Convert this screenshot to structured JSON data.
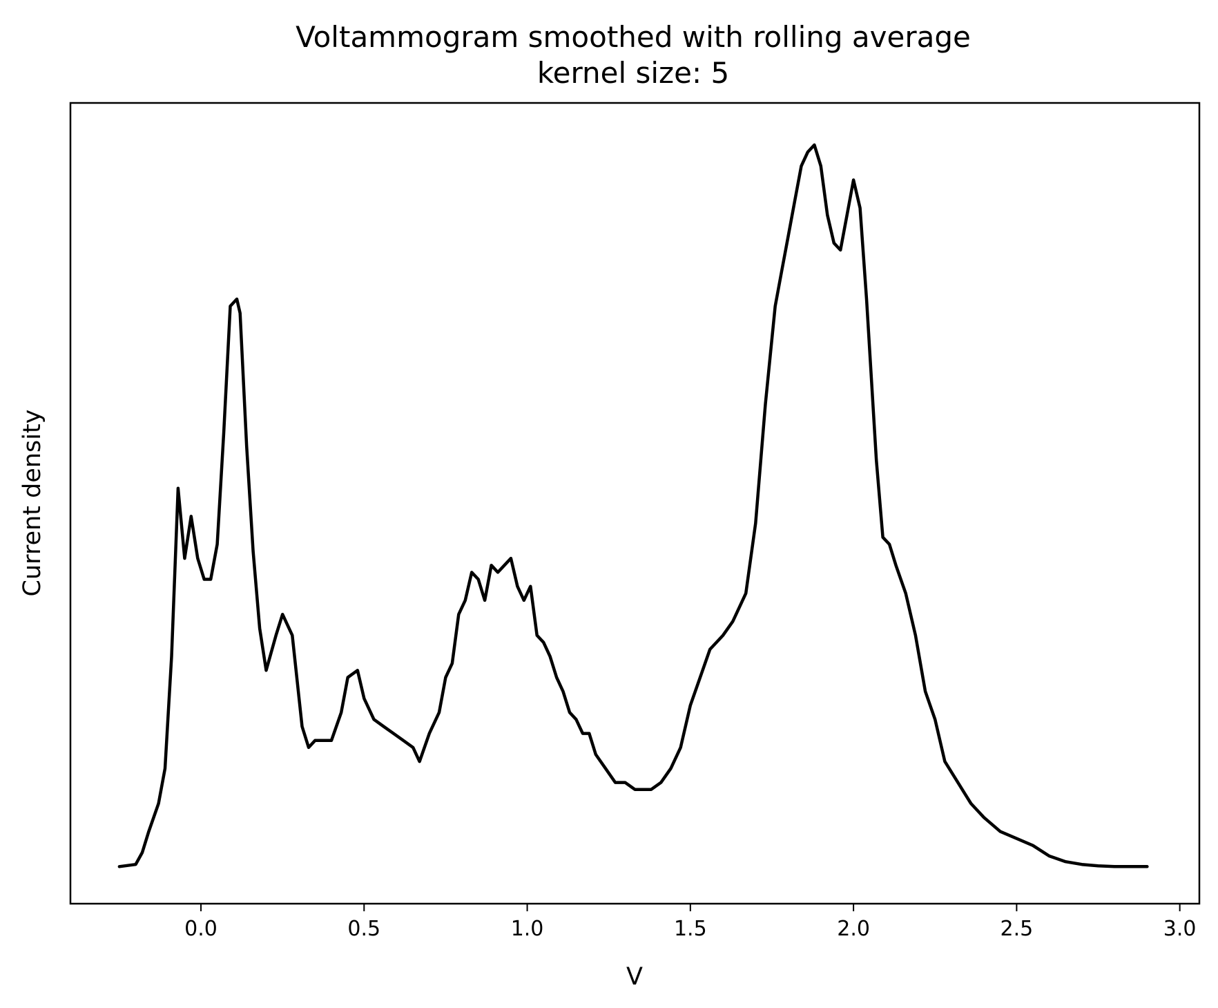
{
  "chart_data": {
    "type": "line",
    "title": "Voltammogram smoothed with rolling average",
    "subtitle": "kernel size: 5",
    "xlabel": "V",
    "ylabel": "Current density",
    "xlim": [
      -0.4,
      3.06
    ],
    "ylim": [
      -0.053,
      1.09
    ],
    "x_ticks": [
      "0.0",
      "0.5",
      "1.0",
      "1.5",
      "2.0",
      "2.5",
      "3.0"
    ],
    "y_ticks_shown": false,
    "grid": false,
    "line_color": "#000000",
    "series": [
      {
        "x": [
          -0.25,
          -0.2,
          -0.18,
          -0.16,
          -0.13,
          -0.11,
          -0.09,
          -0.07,
          -0.05,
          -0.03,
          -0.01,
          0.01,
          0.03,
          0.05,
          0.07,
          0.09,
          0.11,
          0.12,
          0.14,
          0.16,
          0.18,
          0.2,
          0.23,
          0.25,
          0.28,
          0.31,
          0.33,
          0.35,
          0.37,
          0.4,
          0.43,
          0.45,
          0.48,
          0.5,
          0.53,
          0.56,
          0.59,
          0.62,
          0.65,
          0.67,
          0.7,
          0.73,
          0.75,
          0.77,
          0.79,
          0.81,
          0.83,
          0.85,
          0.87,
          0.89,
          0.91,
          0.93,
          0.95,
          0.97,
          0.99,
          1.01,
          1.03,
          1.05,
          1.07,
          1.09,
          1.11,
          1.13,
          1.15,
          1.17,
          1.19,
          1.21,
          1.24,
          1.27,
          1.3,
          1.33,
          1.36,
          1.38,
          1.41,
          1.44,
          1.47,
          1.5,
          1.53,
          1.56,
          1.6,
          1.63,
          1.67,
          1.7,
          1.73,
          1.76,
          1.78,
          1.8,
          1.82,
          1.84,
          1.86,
          1.88,
          1.9,
          1.92,
          1.94,
          1.96,
          1.98,
          2.0,
          2.02,
          2.04,
          2.07,
          2.09,
          2.11,
          2.13,
          2.16,
          2.19,
          2.22,
          2.25,
          2.28,
          2.32,
          2.36,
          2.4,
          2.45,
          2.5,
          2.55,
          2.6,
          2.65,
          2.7,
          2.75,
          2.8,
          2.9
        ],
        "y": [
          0.0,
          0.003,
          0.02,
          0.05,
          0.09,
          0.14,
          0.3,
          0.54,
          0.44,
          0.5,
          0.44,
          0.41,
          0.41,
          0.46,
          0.62,
          0.8,
          0.81,
          0.79,
          0.6,
          0.45,
          0.34,
          0.28,
          0.33,
          0.36,
          0.33,
          0.2,
          0.17,
          0.18,
          0.18,
          0.18,
          0.22,
          0.27,
          0.28,
          0.24,
          0.21,
          0.2,
          0.19,
          0.18,
          0.17,
          0.15,
          0.19,
          0.22,
          0.27,
          0.29,
          0.36,
          0.38,
          0.42,
          0.41,
          0.38,
          0.43,
          0.42,
          0.43,
          0.44,
          0.4,
          0.38,
          0.4,
          0.33,
          0.32,
          0.3,
          0.27,
          0.25,
          0.22,
          0.21,
          0.19,
          0.19,
          0.16,
          0.14,
          0.12,
          0.12,
          0.11,
          0.11,
          0.11,
          0.12,
          0.14,
          0.17,
          0.23,
          0.27,
          0.31,
          0.33,
          0.35,
          0.39,
          0.49,
          0.66,
          0.8,
          0.85,
          0.9,
          0.95,
          1.0,
          1.02,
          1.03,
          1.0,
          0.93,
          0.89,
          0.88,
          0.93,
          0.98,
          0.94,
          0.81,
          0.58,
          0.47,
          0.46,
          0.43,
          0.39,
          0.33,
          0.25,
          0.21,
          0.15,
          0.12,
          0.09,
          0.07,
          0.05,
          0.04,
          0.03,
          0.015,
          0.007,
          0.003,
          0.001,
          0.0,
          0.0
        ]
      }
    ]
  }
}
